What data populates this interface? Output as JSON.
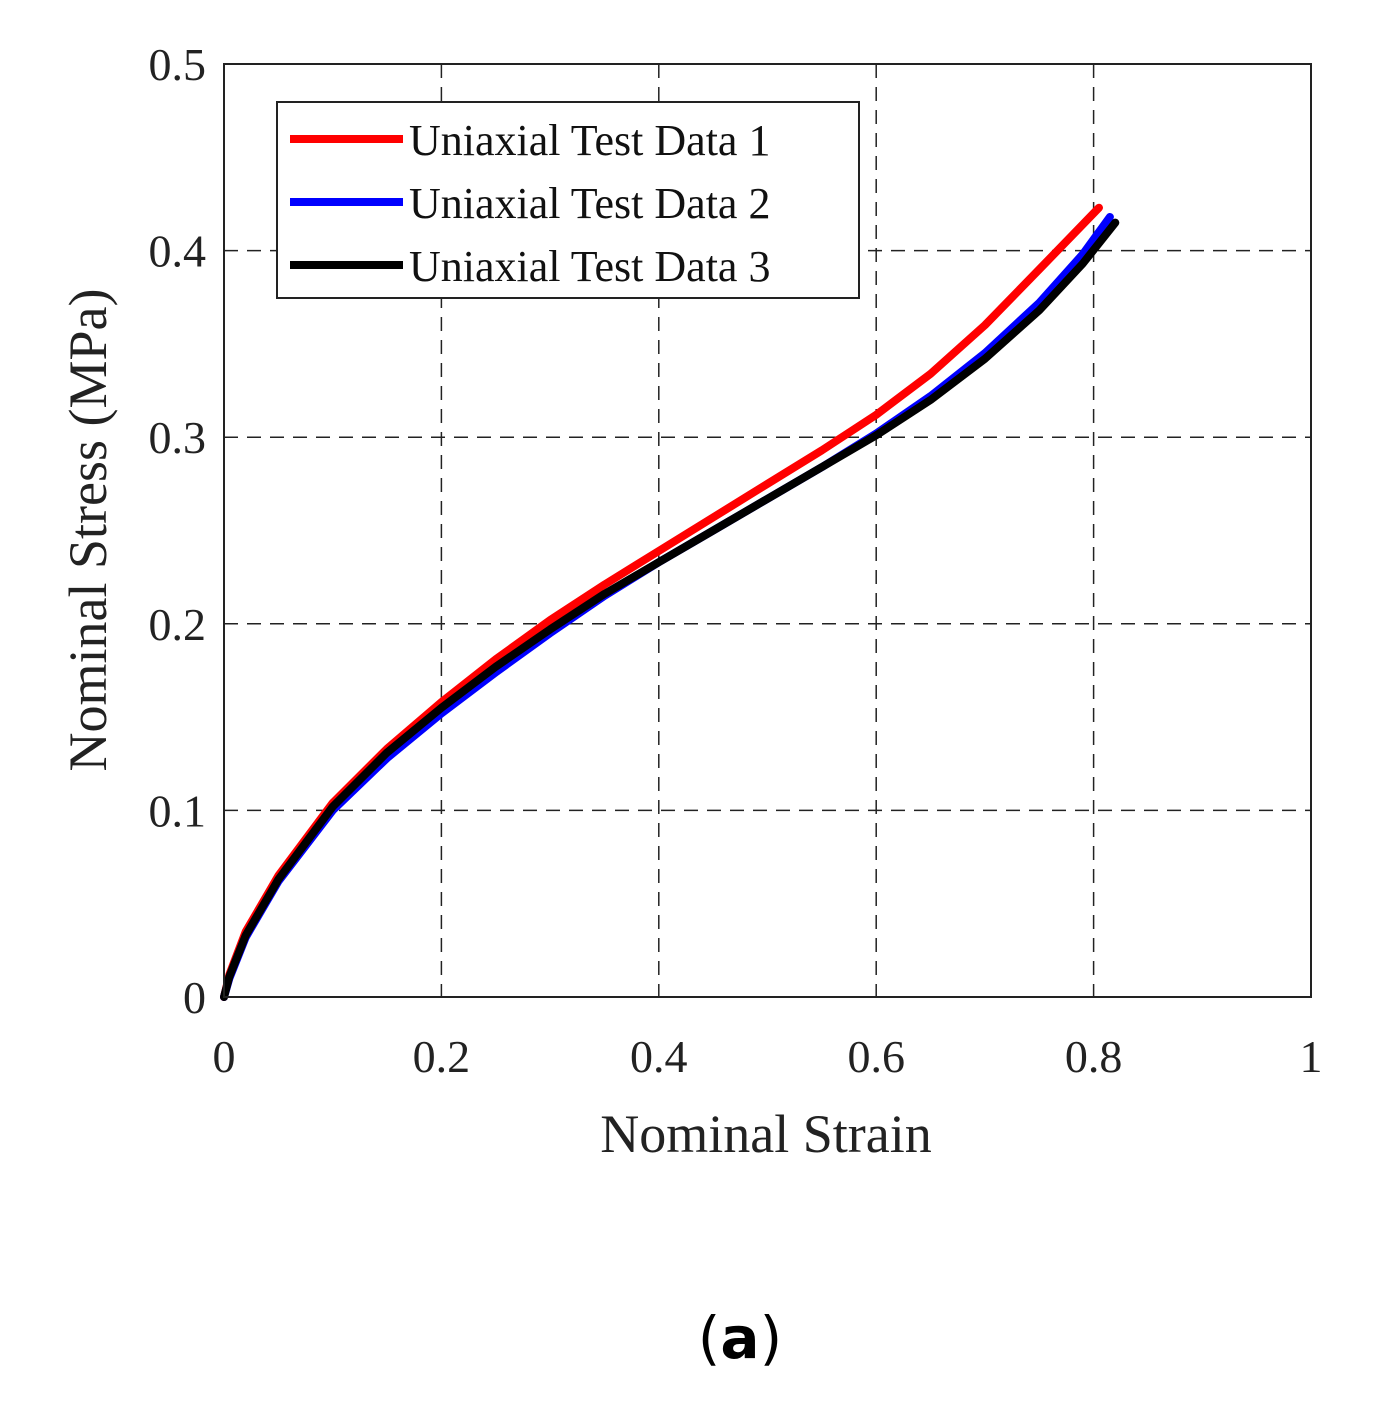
{
  "chart_data": {
    "type": "line",
    "title": "",
    "xlabel": "Nominal Strain",
    "ylabel": "Nominal Stress (MPa)",
    "xlim": [
      0,
      1
    ],
    "ylim": [
      0,
      0.5
    ],
    "xticks": [
      "0",
      "0.2",
      "0.4",
      "0.6",
      "0.8",
      "1"
    ],
    "yticks": [
      "0",
      "0.1",
      "0.2",
      "0.3",
      "0.4",
      "0.5"
    ],
    "xtick_values": [
      0,
      0.2,
      0.4,
      0.6,
      0.8,
      1
    ],
    "ytick_values": [
      0,
      0.1,
      0.2,
      0.3,
      0.4,
      0.5
    ],
    "grid": true,
    "legend_position": "top-left",
    "series": [
      {
        "name": "Uniaxial Test Data 1",
        "color": "#ff0000",
        "x": [
          0,
          0.005,
          0.02,
          0.05,
          0.1,
          0.15,
          0.2,
          0.25,
          0.3,
          0.35,
          0.4,
          0.45,
          0.5,
          0.55,
          0.6,
          0.65,
          0.7,
          0.75,
          0.78,
          0.805
        ],
        "y": [
          0,
          0.012,
          0.035,
          0.065,
          0.104,
          0.133,
          0.158,
          0.181,
          0.202,
          0.221,
          0.239,
          0.257,
          0.275,
          0.293,
          0.312,
          0.334,
          0.36,
          0.39,
          0.408,
          0.423
        ]
      },
      {
        "name": "Uniaxial Test Data 2",
        "color": "#0000ff",
        "x": [
          0,
          0.005,
          0.02,
          0.05,
          0.1,
          0.15,
          0.2,
          0.25,
          0.3,
          0.35,
          0.4,
          0.45,
          0.5,
          0.55,
          0.6,
          0.65,
          0.7,
          0.75,
          0.79,
          0.815
        ],
        "y": [
          0,
          0.01,
          0.032,
          0.062,
          0.1,
          0.128,
          0.152,
          0.174,
          0.195,
          0.215,
          0.233,
          0.25,
          0.267,
          0.284,
          0.302,
          0.322,
          0.345,
          0.372,
          0.398,
          0.418
        ]
      },
      {
        "name": "Uniaxial Test Data 3",
        "color": "#000000",
        "x": [
          0,
          0.005,
          0.02,
          0.05,
          0.1,
          0.15,
          0.2,
          0.25,
          0.3,
          0.35,
          0.4,
          0.45,
          0.5,
          0.55,
          0.6,
          0.65,
          0.7,
          0.75,
          0.79,
          0.82
        ],
        "y": [
          0,
          0.011,
          0.033,
          0.063,
          0.102,
          0.131,
          0.155,
          0.177,
          0.197,
          0.216,
          0.233,
          0.25,
          0.267,
          0.284,
          0.301,
          0.32,
          0.342,
          0.368,
          0.393,
          0.415
        ]
      }
    ]
  },
  "panel_label": {
    "open": "(",
    "letter": "a",
    "close": ")"
  }
}
